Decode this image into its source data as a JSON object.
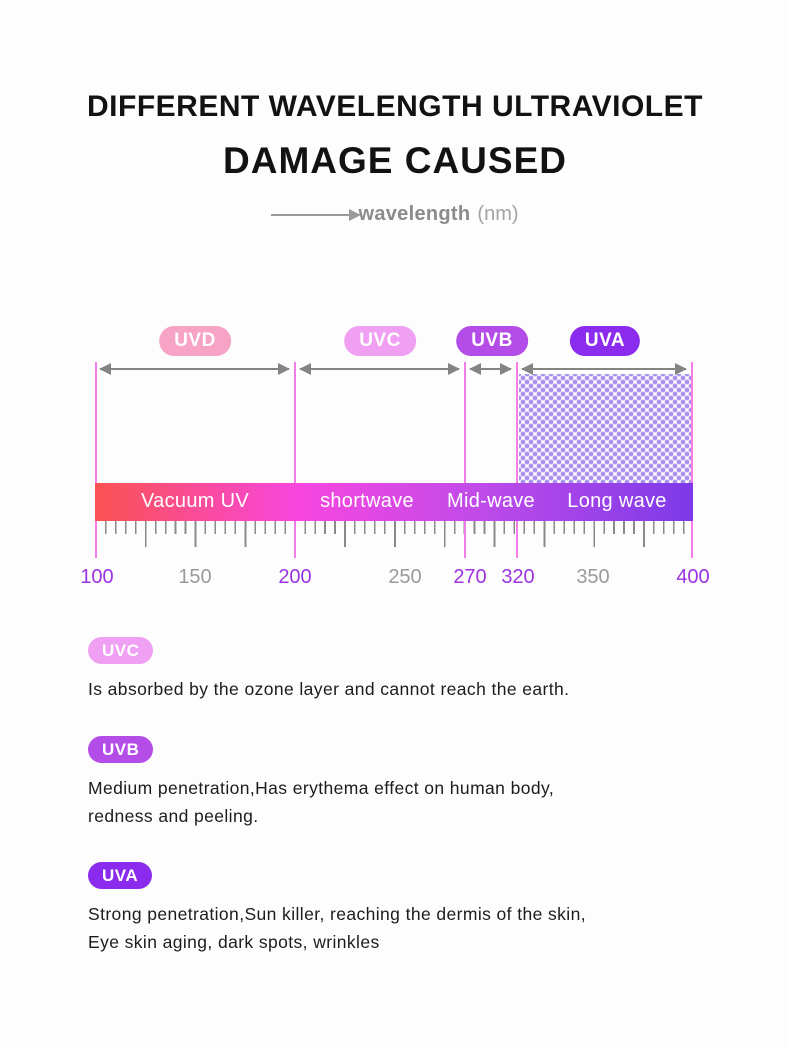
{
  "header": {
    "title_line1": "DIFFERENT WAVELENGTH ULTRAVIOLET",
    "title_line2": "DAMAGE CAUSED",
    "axis_label": "wavelength",
    "axis_unit": "(nm)"
  },
  "diagram": {
    "type": "annotated-spectrum-scale",
    "bands": [
      {
        "label": "UVD",
        "badge_color": "#f7a3c5",
        "range_nm": [
          100,
          200
        ],
        "bar_label": "Vacuum UV"
      },
      {
        "label": "UVC",
        "badge_color": "#efa0f2",
        "range_nm": [
          200,
          270
        ],
        "bar_label": "shortwave"
      },
      {
        "label": "UVB",
        "badge_color": "#b44ce8",
        "range_nm": [
          270,
          320
        ],
        "bar_label": "Mid-wave"
      },
      {
        "label": "UVA",
        "badge_color": "#8b2bee",
        "range_nm": [
          320,
          400
        ],
        "bar_label": "Long wave",
        "pattern": "purple-dots"
      }
    ],
    "bar_gradient": [
      "#fa5251",
      "#f846df",
      "#c04be9",
      "#7d3ae9"
    ],
    "marker_line_color": "#f57be8",
    "scale_ticks": [
      {
        "value": "100",
        "highlight": true
      },
      {
        "value": "150",
        "highlight": false
      },
      {
        "value": "200",
        "highlight": true
      },
      {
        "value": "250",
        "highlight": false
      },
      {
        "value": "270",
        "highlight": true
      },
      {
        "value": "320",
        "highlight": true
      },
      {
        "value": "350",
        "highlight": false
      },
      {
        "value": "400",
        "highlight": true
      }
    ],
    "tick_highlight_color": "#9c32e2",
    "tick_normal_color": "#9a9a9a"
  },
  "sections": [
    {
      "badge": "UVC",
      "badge_color": "#efa0f2",
      "lines": [
        "Is absorbed by the ozone layer and cannot reach the earth.",
        ""
      ]
    },
    {
      "badge": "UVB",
      "badge_color": "#b44ce8",
      "lines": [
        "Medium penetration,Has erythema effect on human body,",
        "redness and peeling."
      ]
    },
    {
      "badge": "UVA",
      "badge_color": "#8b2bee",
      "lines": [
        "Strong penetration,Sun killer, reaching the dermis of the skin,",
        "Eye skin aging, dark spots, wrinkles"
      ]
    }
  ]
}
